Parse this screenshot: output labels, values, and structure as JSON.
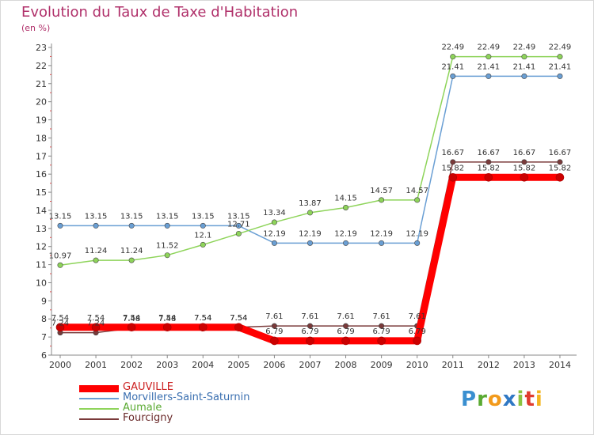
{
  "title": "Evolution du Taux de Taxe d'Habitation",
  "unit_label": "(en %)",
  "logo_text": "Proxiti",
  "chart_data": {
    "type": "line",
    "title": "Evolution du Taux de Taxe d'Habitation",
    "ylabel": "(en %)",
    "xlabel": "",
    "x": [
      "2000",
      "2001",
      "2002",
      "2003",
      "2004",
      "2005",
      "2006",
      "2007",
      "2008",
      "2009",
      "2010",
      "2011",
      "2012",
      "2013",
      "2014"
    ],
    "ylim": [
      6,
      23
    ],
    "yticks": [
      6,
      7,
      8,
      9,
      10,
      11,
      12,
      13,
      14,
      15,
      16,
      17,
      18,
      19,
      20,
      21,
      22,
      23
    ],
    "grid": false,
    "legend_position": "bottom-left",
    "series": [
      {
        "name": "GAUVILLE",
        "color": "#ff0000",
        "emphasis": true,
        "values": [
          7.54,
          7.54,
          7.54,
          7.54,
          7.54,
          7.54,
          6.79,
          6.79,
          6.79,
          6.79,
          6.79,
          15.82,
          15.82,
          15.82,
          15.82
        ]
      },
      {
        "name": "Morvillers-Saint-Saturnin",
        "color": "#6a9fd4",
        "values": [
          13.15,
          13.15,
          13.15,
          13.15,
          13.15,
          13.15,
          12.19,
          12.19,
          12.19,
          12.19,
          12.19,
          21.41,
          21.41,
          21.41,
          21.41
        ]
      },
      {
        "name": "Aumale",
        "color": "#8ed45a",
        "values": [
          10.97,
          11.24,
          11.24,
          11.52,
          12.1,
          12.71,
          13.34,
          13.87,
          14.15,
          14.57,
          14.57,
          22.49,
          22.49,
          22.49,
          22.49
        ]
      },
      {
        "name": "Fourcigny",
        "color": "#7a3a3a",
        "values": [
          7.24,
          7.24,
          7.48,
          7.48,
          7.54,
          7.54,
          7.61,
          7.61,
          7.61,
          7.61,
          7.61,
          16.67,
          16.67,
          16.67,
          16.67
        ]
      }
    ],
    "data_labels": {
      "GAUVILLE": [
        "7.54",
        "7.54",
        "7.54",
        "7.54",
        "7.54",
        "7.54",
        "6.79",
        "6.79",
        "6.79",
        "6.79",
        "6.79",
        "15.82",
        "15.82",
        "15.82",
        "15.82"
      ],
      "Morvillers-Saint-Saturnin": [
        "13.15",
        "13.15",
        "13.15",
        "13.15",
        "13.15",
        "13.15",
        "12.19",
        "12.19",
        "12.19",
        "12.19",
        "12.19",
        "21.41",
        "21.41",
        "21.41",
        "21.41"
      ],
      "Aumale": [
        "10.97",
        "11.24",
        "11.24",
        "11.52",
        "12.1",
        "12.71",
        "13.34",
        "13.87",
        "14.15",
        "14.57",
        "14.57",
        "22.49",
        "22.49",
        "22.49",
        "22.49"
      ],
      "Fourcigny": [
        "7.24",
        "7.24",
        "7.48",
        "7.48",
        "7.54",
        "7.54",
        "7.61",
        "7.61",
        "7.61",
        "7.61",
        "7.61",
        "16.67",
        "16.67",
        "16.67",
        "16.67"
      ]
    }
  }
}
